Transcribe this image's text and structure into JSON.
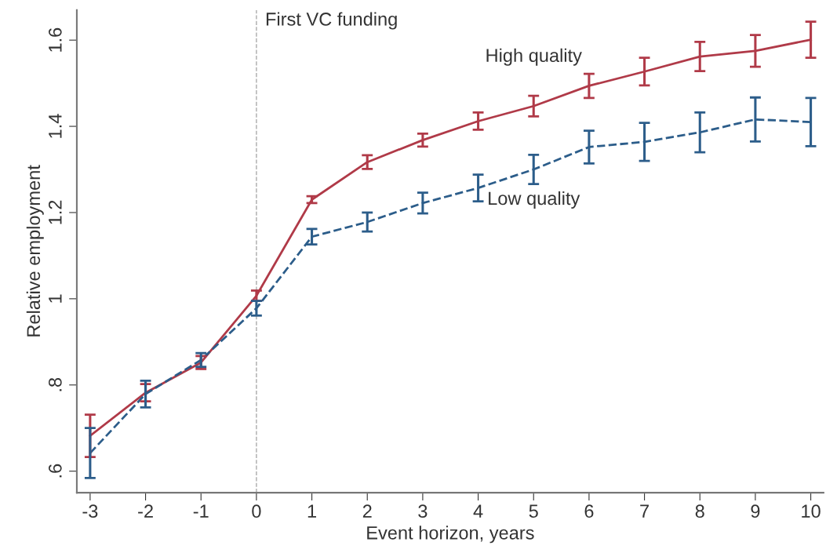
{
  "chart_data": {
    "type": "line",
    "xlabel": "Event horizon, years",
    "ylabel": "Relative employment",
    "x": [
      -3,
      -2,
      -1,
      0,
      1,
      2,
      3,
      4,
      5,
      6,
      7,
      8,
      9,
      10
    ],
    "series": [
      {
        "name": "High quality",
        "color": "#b03a48",
        "line_style": "solid",
        "values": [
          0.682,
          0.782,
          0.852,
          1.007,
          1.23,
          1.317,
          1.368,
          1.412,
          1.447,
          1.494,
          1.527,
          1.562,
          1.575,
          1.601
        ],
        "errors": [
          0.049,
          0.02,
          0.015,
          0.012,
          0.008,
          0.016,
          0.015,
          0.02,
          0.024,
          0.028,
          0.032,
          0.034,
          0.037,
          0.042
        ]
      },
      {
        "name": "Low quality",
        "color": "#2c5d8a",
        "line_style": "dashed",
        "values": [
          0.642,
          0.779,
          0.858,
          0.978,
          1.144,
          1.178,
          1.222,
          1.257,
          1.3,
          1.352,
          1.364,
          1.386,
          1.416,
          1.41
        ],
        "errors": [
          0.058,
          0.031,
          0.016,
          0.017,
          0.018,
          0.022,
          0.024,
          0.031,
          0.034,
          0.038,
          0.044,
          0.046,
          0.051,
          0.056
        ]
      }
    ],
    "ref_lines": [
      {
        "axis": "x",
        "value": 0,
        "label": "First VC funding",
        "color": "#aaaaaa",
        "line_style": "dashed"
      }
    ],
    "xlim": [
      -3.24,
      10.23
    ],
    "xticks": [
      -3,
      -2,
      -1,
      0,
      1,
      2,
      3,
      4,
      5,
      6,
      7,
      8,
      9,
      10
    ],
    "ylim": [
      0.55,
      1.67
    ],
    "yticks": [
      {
        "value": 0.6,
        "label": ".6"
      },
      {
        "value": 0.8,
        "label": ".8"
      },
      {
        "value": 1,
        "label": "1"
      },
      {
        "value": 1.2,
        "label": "1.2"
      },
      {
        "value": 1.4,
        "label": "1.4"
      },
      {
        "value": 1.6,
        "label": "1.6"
      }
    ],
    "grid": false,
    "legend": false,
    "marker": "none"
  }
}
